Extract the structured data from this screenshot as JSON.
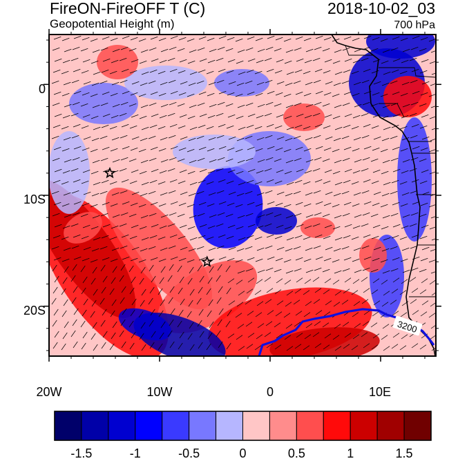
{
  "header": {
    "left_title": "FireON-FireOFF T (C)",
    "left_subtitle": "Geopotential Height (m)",
    "right_title": "2018-10-02_03",
    "right_subtitle": "700 hPa"
  },
  "map": {
    "region": "Southeast Atlantic / southwest Africa coast",
    "lon_range": [
      -20,
      15
    ],
    "lat_range": [
      -24.5,
      4.5
    ],
    "lat_ticks": [
      {
        "lat": 0,
        "label": "0"
      },
      {
        "lat": -10,
        "label": "10S"
      },
      {
        "lat": -20,
        "label": "20S"
      }
    ],
    "lon_ticks": [
      {
        "lon": -20,
        "label": "20W"
      },
      {
        "lon": -10,
        "label": "10W"
      },
      {
        "lon": 0,
        "label": "0"
      },
      {
        "lon": 10,
        "label": "10E"
      }
    ],
    "contour": {
      "label": "3200",
      "color": "#1010e0"
    },
    "markers": [
      {
        "type": "star",
        "lon": -14.5,
        "lat": -8.0
      },
      {
        "type": "star",
        "lon": -5.7,
        "lat": -16.0
      }
    ],
    "wind_barbs": "present"
  },
  "colorbar": {
    "colors": [
      "#00006a",
      "#0000a8",
      "#0000d0",
      "#0000ff",
      "#3a3aff",
      "#7878ff",
      "#b6b6ff",
      "#ffc6c6",
      "#ff8c8c",
      "#ff4e4e",
      "#ff0a0a",
      "#cc0000",
      "#a00000",
      "#700000"
    ],
    "labels": [
      "-1.5",
      "-1",
      "-0.5",
      "0",
      "0.5",
      "1",
      "1.5"
    ],
    "label_values": [
      -1.5,
      -1,
      -0.5,
      0,
      0.5,
      1,
      1.5
    ],
    "range": [
      -1.75,
      1.75
    ]
  }
}
